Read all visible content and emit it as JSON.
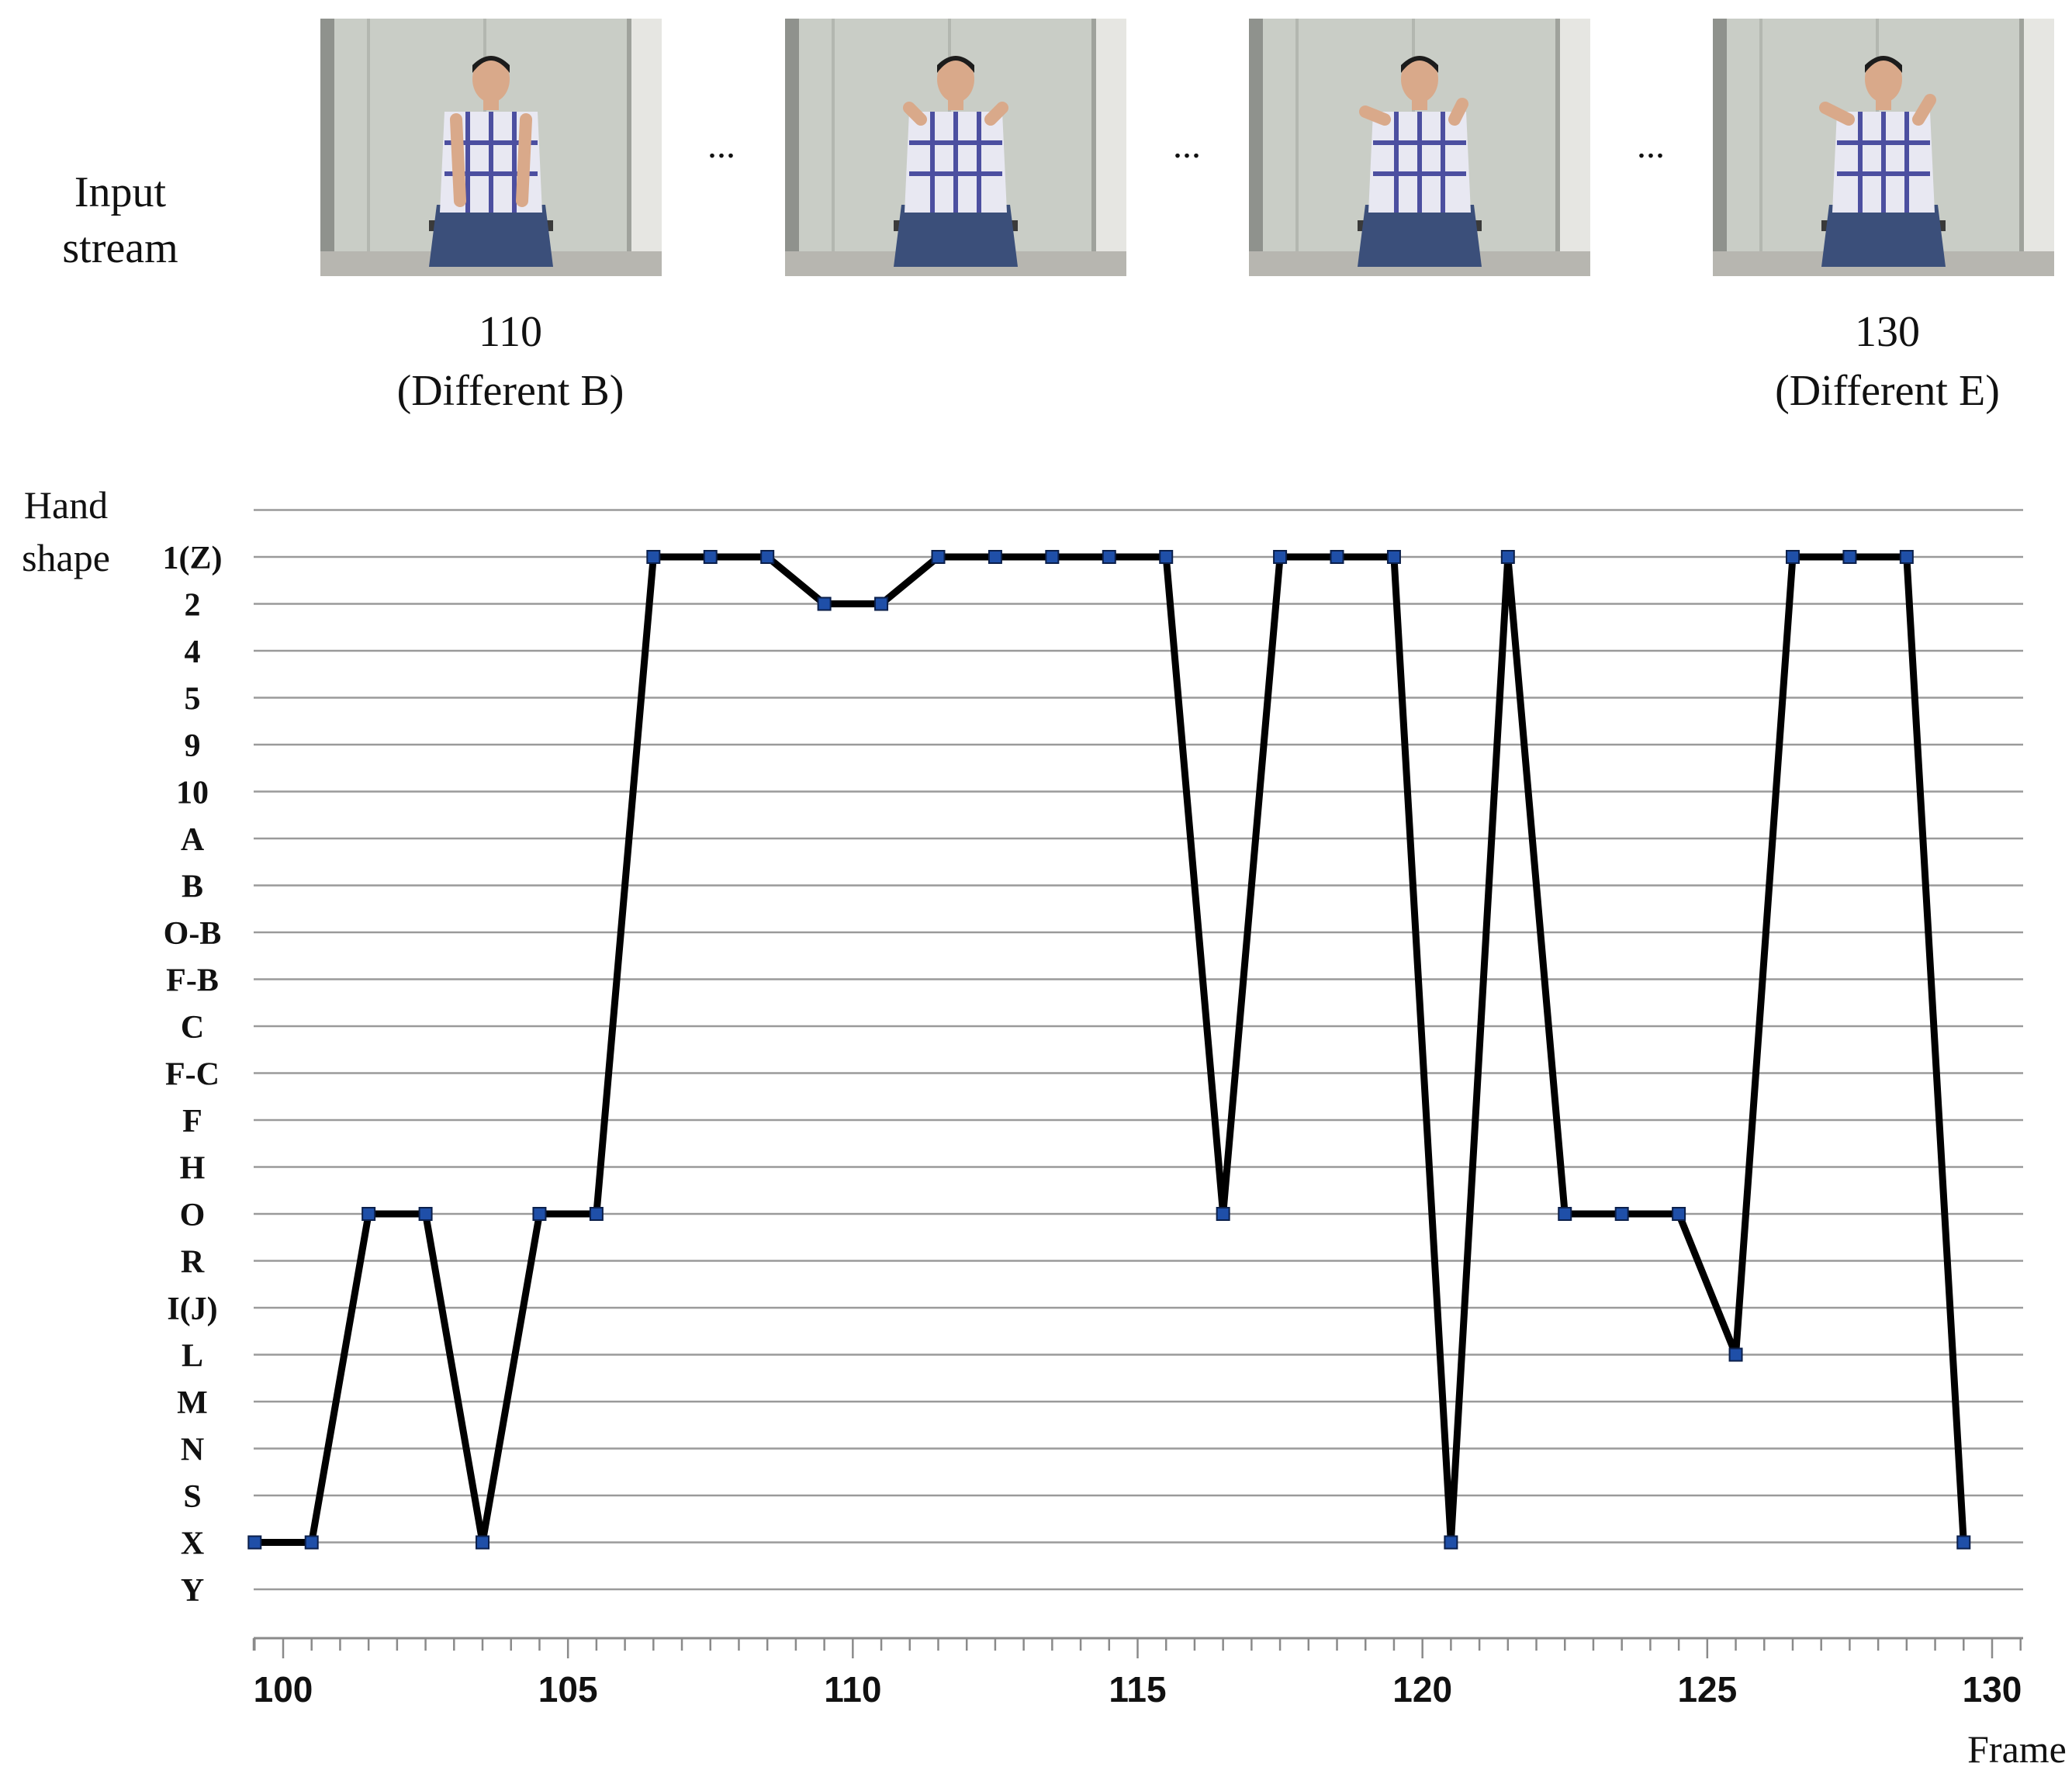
{
  "header": {
    "input_label_line1": "Input",
    "input_label_line2": "stream",
    "ellipsis": "...",
    "captions": [
      {
        "frame": "110",
        "label": "(Different B)"
      },
      {
        "frame": "130",
        "label": "(Different E)"
      }
    ]
  },
  "chart_data": {
    "type": "line",
    "title": "",
    "ylabel_line1": "Hand",
    "ylabel_line2": "shape",
    "xlabel": "Frame",
    "categories": [
      "1(Z)",
      "2",
      "4",
      "5",
      "9",
      "10",
      "A",
      "B",
      "O-B",
      "F-B",
      "C",
      "F-C",
      "F",
      "H",
      "O",
      "R",
      "I(J)",
      "L",
      "M",
      "N",
      "S",
      "X",
      "Y"
    ],
    "xlim": [
      100,
      130
    ],
    "xticks": [
      100,
      105,
      110,
      115,
      120,
      125,
      130
    ],
    "grid": true,
    "series": [
      {
        "x": [
          99.5,
          100.5,
          101.5,
          102.5,
          103.5,
          104.5,
          105.5,
          106.5,
          107.5,
          108.5,
          109.5,
          110.5,
          111.5,
          112.5,
          113.5,
          114.5,
          115.5,
          116.5,
          117.5,
          118.5,
          119.5,
          120.5,
          121.5,
          122.5,
          123.5,
          124.5,
          125.5,
          126.5,
          127.5,
          128.5,
          129.5
        ],
        "values": [
          "X",
          "X",
          "O",
          "O",
          "X",
          "O",
          "O",
          "1(Z)",
          "1(Z)",
          "1(Z)",
          "2",
          "2",
          "1(Z)",
          "1(Z)",
          "1(Z)",
          "1(Z)",
          "1(Z)",
          "O",
          "1(Z)",
          "1(Z)",
          "1(Z)",
          "X",
          "1(Z)",
          "O",
          "O",
          "O",
          "L",
          "1(Z)",
          "1(Z)",
          "1(Z)",
          "X"
        ]
      }
    ],
    "line_color": "#000000",
    "marker_color": "#1f4fa8"
  }
}
